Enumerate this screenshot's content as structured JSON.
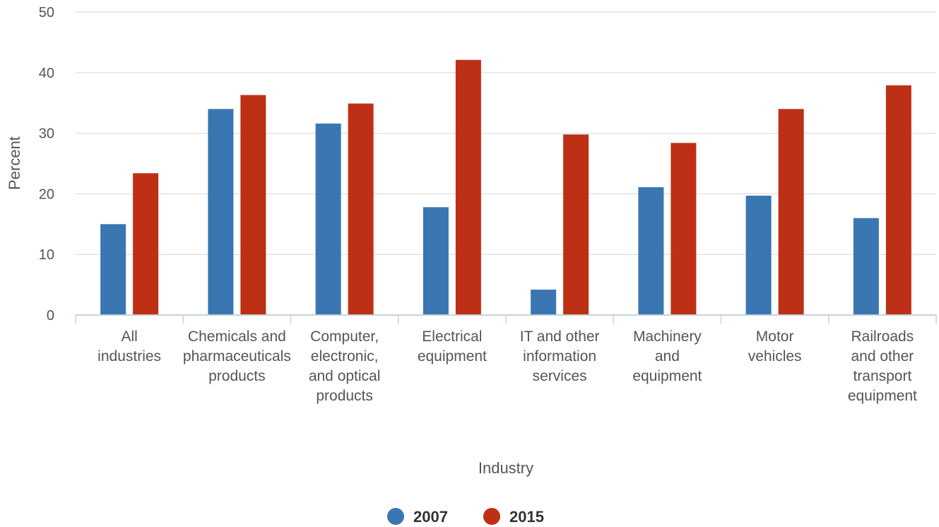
{
  "chart_data": {
    "type": "bar",
    "ylabel": "Percent",
    "xlabel": "Industry",
    "ylim": [
      0,
      50
    ],
    "yticks": [
      0,
      10,
      20,
      30,
      40,
      50
    ],
    "grid": true,
    "legend_position": "bottom-center",
    "categories": [
      [
        "All",
        "industries"
      ],
      [
        "Chemicals and",
        "pharmaceuticals",
        "products"
      ],
      [
        "Computer,",
        "electronic,",
        "and optical",
        "products"
      ],
      [
        "Electrical",
        "equipment"
      ],
      [
        "IT and other",
        "information",
        "services"
      ],
      [
        "Machinery",
        "and",
        "equipment"
      ],
      [
        "Motor",
        "vehicles"
      ],
      [
        "Railroads",
        "and other",
        "transport",
        "equipment"
      ]
    ],
    "series": [
      {
        "name": "2007",
        "color": "#3a76b1",
        "values": [
          15.0,
          34.0,
          31.6,
          17.8,
          4.2,
          21.1,
          19.7,
          16.0
        ]
      },
      {
        "name": "2015",
        "color": "#bd3015",
        "values": [
          23.4,
          36.3,
          34.9,
          42.1,
          29.8,
          28.4,
          34.0,
          37.9
        ]
      }
    ]
  }
}
